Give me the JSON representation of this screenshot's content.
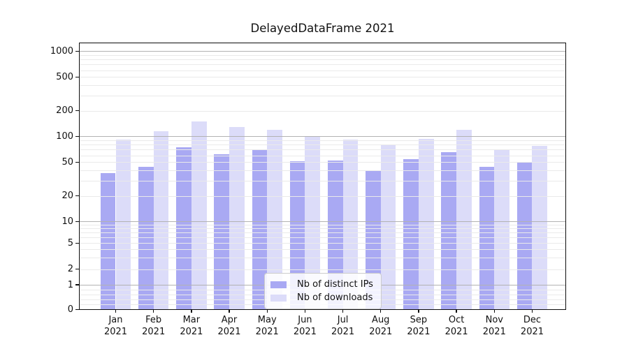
{
  "chart_data": {
    "type": "bar",
    "title": "DelayedDataFrame 2021",
    "categories": [
      "Jan 2021",
      "Feb 2021",
      "Mar 2021",
      "Apr 2021",
      "May 2021",
      "Jun 2021",
      "Jul 2021",
      "Aug 2021",
      "Sep 2021",
      "Oct 2021",
      "Nov 2021",
      "Dec 2021"
    ],
    "x_tick_line1": [
      "Jan",
      "Feb",
      "Mar",
      "Apr",
      "May",
      "Jun",
      "Jul",
      "Aug",
      "Sep",
      "Oct",
      "Nov",
      "Dec"
    ],
    "x_tick_line2": "2021",
    "series": [
      {
        "name": "Nb of distinct IPs",
        "color": "#a9a9f3",
        "values": [
          37,
          44,
          75,
          62,
          71,
          51,
          52,
          39,
          54,
          66,
          44,
          50
        ]
      },
      {
        "name": "Nb of downloads",
        "color": "#dcdcf9",
        "values": [
          92,
          115,
          149,
          128,
          120,
          100,
          91,
          80,
          94,
          120,
          70,
          77
        ]
      }
    ],
    "xlabel": "",
    "ylabel": "",
    "yscale": "symlog",
    "y_ticks": [
      0,
      1,
      2,
      5,
      10,
      20,
      50,
      100,
      200,
      500,
      1000
    ],
    "ylim": [
      0,
      1266
    ],
    "grid": true,
    "legend_position": "lower center",
    "colors": {
      "major_grid": "#b2b2b2",
      "minor_grid": "#eaeaea",
      "spine": "#0d0d0d",
      "background": "#ffffff"
    }
  }
}
